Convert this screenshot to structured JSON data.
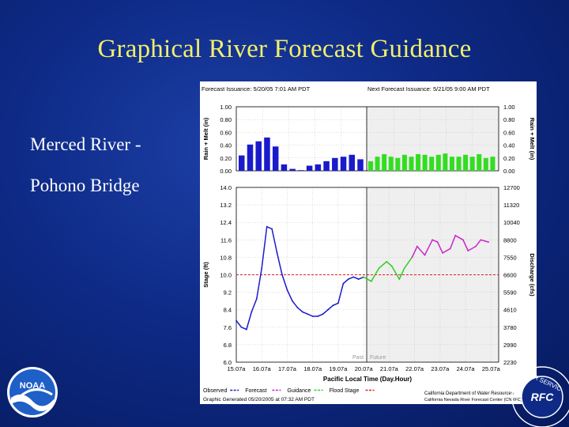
{
  "slide": {
    "title": "Graphical River Forecast Guidance",
    "label_line1": "Merced River -",
    "label_line2": "Pohono Bridge"
  },
  "logos": {
    "noaa_text": "NOAA",
    "rfc_text": "RFC",
    "rfc_ring_text": "ATHER SERVIC"
  },
  "chart_data": [
    {
      "type": "bar",
      "header_left": "Forecast Issuance: 5/20/05 7:01 AM PDT",
      "header_right": "Next Forecast Issuance: 5/21/05 9:00 AM PDT",
      "ylabel_left": "Rain + Melt (in)",
      "ylabel_right": "Rain + Melt (in)",
      "ylim": [
        0,
        1.0
      ],
      "yticks_left": [
        "0.00",
        "0.20",
        "0.40",
        "0.60",
        "0.80",
        "1.00"
      ],
      "yticks_right": [
        "0.00",
        "0.20",
        "0.40",
        "0.60",
        "0.80",
        "1.00"
      ],
      "series": [
        {
          "name": "Observed",
          "color": "#1a1acc",
          "values": [
            0.24,
            0.41,
            0.46,
            0.52,
            0.38,
            0.1,
            0.03,
            0.01,
            0.08,
            0.1,
            0.15,
            0.2,
            0.22,
            0.25,
            0.18
          ]
        },
        {
          "name": "Forecast",
          "color": "#33dd22",
          "values": [
            0.15,
            0.22,
            0.26,
            0.22,
            0.2,
            0.25,
            0.22,
            0.26,
            0.25,
            0.22,
            0.25,
            0.27,
            0.22,
            0.22,
            0.25,
            0.22,
            0.26,
            0.2,
            0.22
          ]
        }
      ],
      "grid": true
    },
    {
      "type": "line",
      "ylabel_left": "Stage (ft)",
      "ylabel_right": "Discharge (cfs)",
      "xlabel": "Pacific Local Time (Day.Hour)",
      "ylim": [
        6.0,
        14.0
      ],
      "yticks_left": [
        "6.0",
        "6.8",
        "7.6",
        "8.4",
        "9.2",
        "10.0",
        "10.8",
        "11.6",
        "12.4",
        "13.2",
        "14.0"
      ],
      "yticks_right": [
        "2230",
        "2990",
        "3780",
        "4610",
        "5590",
        "6600",
        "7550",
        "8800",
        "10040",
        "11320",
        "12700"
      ],
      "xticks": [
        "15.07a",
        "16.07a",
        "17.07a",
        "18.07a",
        "19.07a",
        "20.07a",
        "21.07a",
        "22.07a",
        "23.07a",
        "24.07a",
        "25.07a"
      ],
      "xlim": [
        15,
        25.3
      ],
      "past_label": "Past",
      "future_label": "Future",
      "flood_stage": 10.0,
      "legend": [
        {
          "label": "Observed",
          "color": "#1a1acc"
        },
        {
          "label": "Forecast",
          "color": "#cc22cc"
        },
        {
          "label": "Guidance",
          "color": "#33cc22"
        },
        {
          "label": "Flood Stage",
          "color": "#dd2222"
        }
      ],
      "footer_left": "Graphic Generated 05/20/2005 at 07:32 AM PDT",
      "footer_right_line1": "California Department of Water Resources",
      "footer_right_line2": "California Nevada River Forecast Center (CNRFC) / NWS / NOAA",
      "series": [
        {
          "name": "Observed",
          "color": "#1a1acc",
          "x": [
            15.0,
            15.2,
            15.4,
            15.6,
            15.8,
            16.0,
            16.2,
            16.4,
            16.6,
            16.8,
            17.0,
            17.2,
            17.4,
            17.6,
            17.8,
            18.0,
            18.2,
            18.4,
            18.6,
            18.8,
            19.0,
            19.2,
            19.4,
            19.6,
            19.8,
            20.0
          ],
          "y": [
            7.9,
            7.6,
            7.5,
            8.3,
            8.9,
            10.3,
            12.2,
            12.1,
            11.0,
            10.0,
            9.3,
            8.8,
            8.5,
            8.3,
            8.2,
            8.1,
            8.1,
            8.2,
            8.4,
            8.6,
            8.7,
            9.6,
            9.8,
            9.9,
            9.8,
            9.9
          ]
        },
        {
          "name": "Guidance",
          "color": "#33cc22",
          "x": [
            20.0,
            20.3,
            20.6,
            20.9,
            21.1,
            21.4,
            21.6,
            21.9
          ],
          "y": [
            9.9,
            9.7,
            10.3,
            10.6,
            10.4,
            9.8,
            10.3,
            10.8
          ]
        },
        {
          "name": "Forecast",
          "color": "#cc22cc",
          "x": [
            21.9,
            22.1,
            22.4,
            22.7,
            22.9,
            23.1,
            23.4,
            23.6,
            23.9,
            24.1,
            24.4,
            24.6,
            24.9
          ],
          "y": [
            10.8,
            11.3,
            10.9,
            11.6,
            11.5,
            11.0,
            11.2,
            11.8,
            11.6,
            11.1,
            11.3,
            11.6,
            11.5
          ]
        }
      ],
      "grid": true
    }
  ]
}
